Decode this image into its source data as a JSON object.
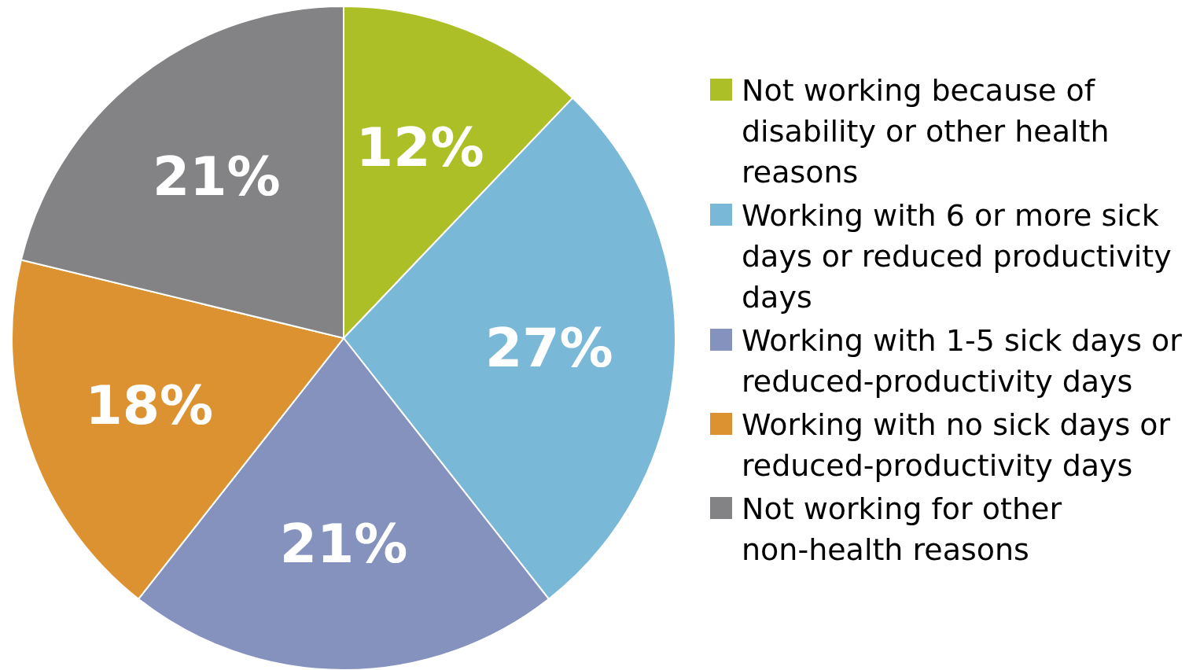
{
  "chart_data": {
    "type": "pie",
    "categories": [
      "Not working because of disability or other health reasons",
      "Working with 6 or more sick days or reduced productivity days",
      "Working with 1-5 sick days or reduced-productivity days",
      "Working with no sick days or reduced-productivity days",
      "Not working for other non-health reasons"
    ],
    "values": [
      12,
      27,
      21,
      18,
      21
    ],
    "colors": [
      "#adbf27",
      "#7ab8d8",
      "#8592bd",
      "#dc9230",
      "#838385"
    ],
    "value_labels": [
      "12%",
      "27%",
      "21%",
      "18%",
      "21%"
    ],
    "legend": "right"
  }
}
